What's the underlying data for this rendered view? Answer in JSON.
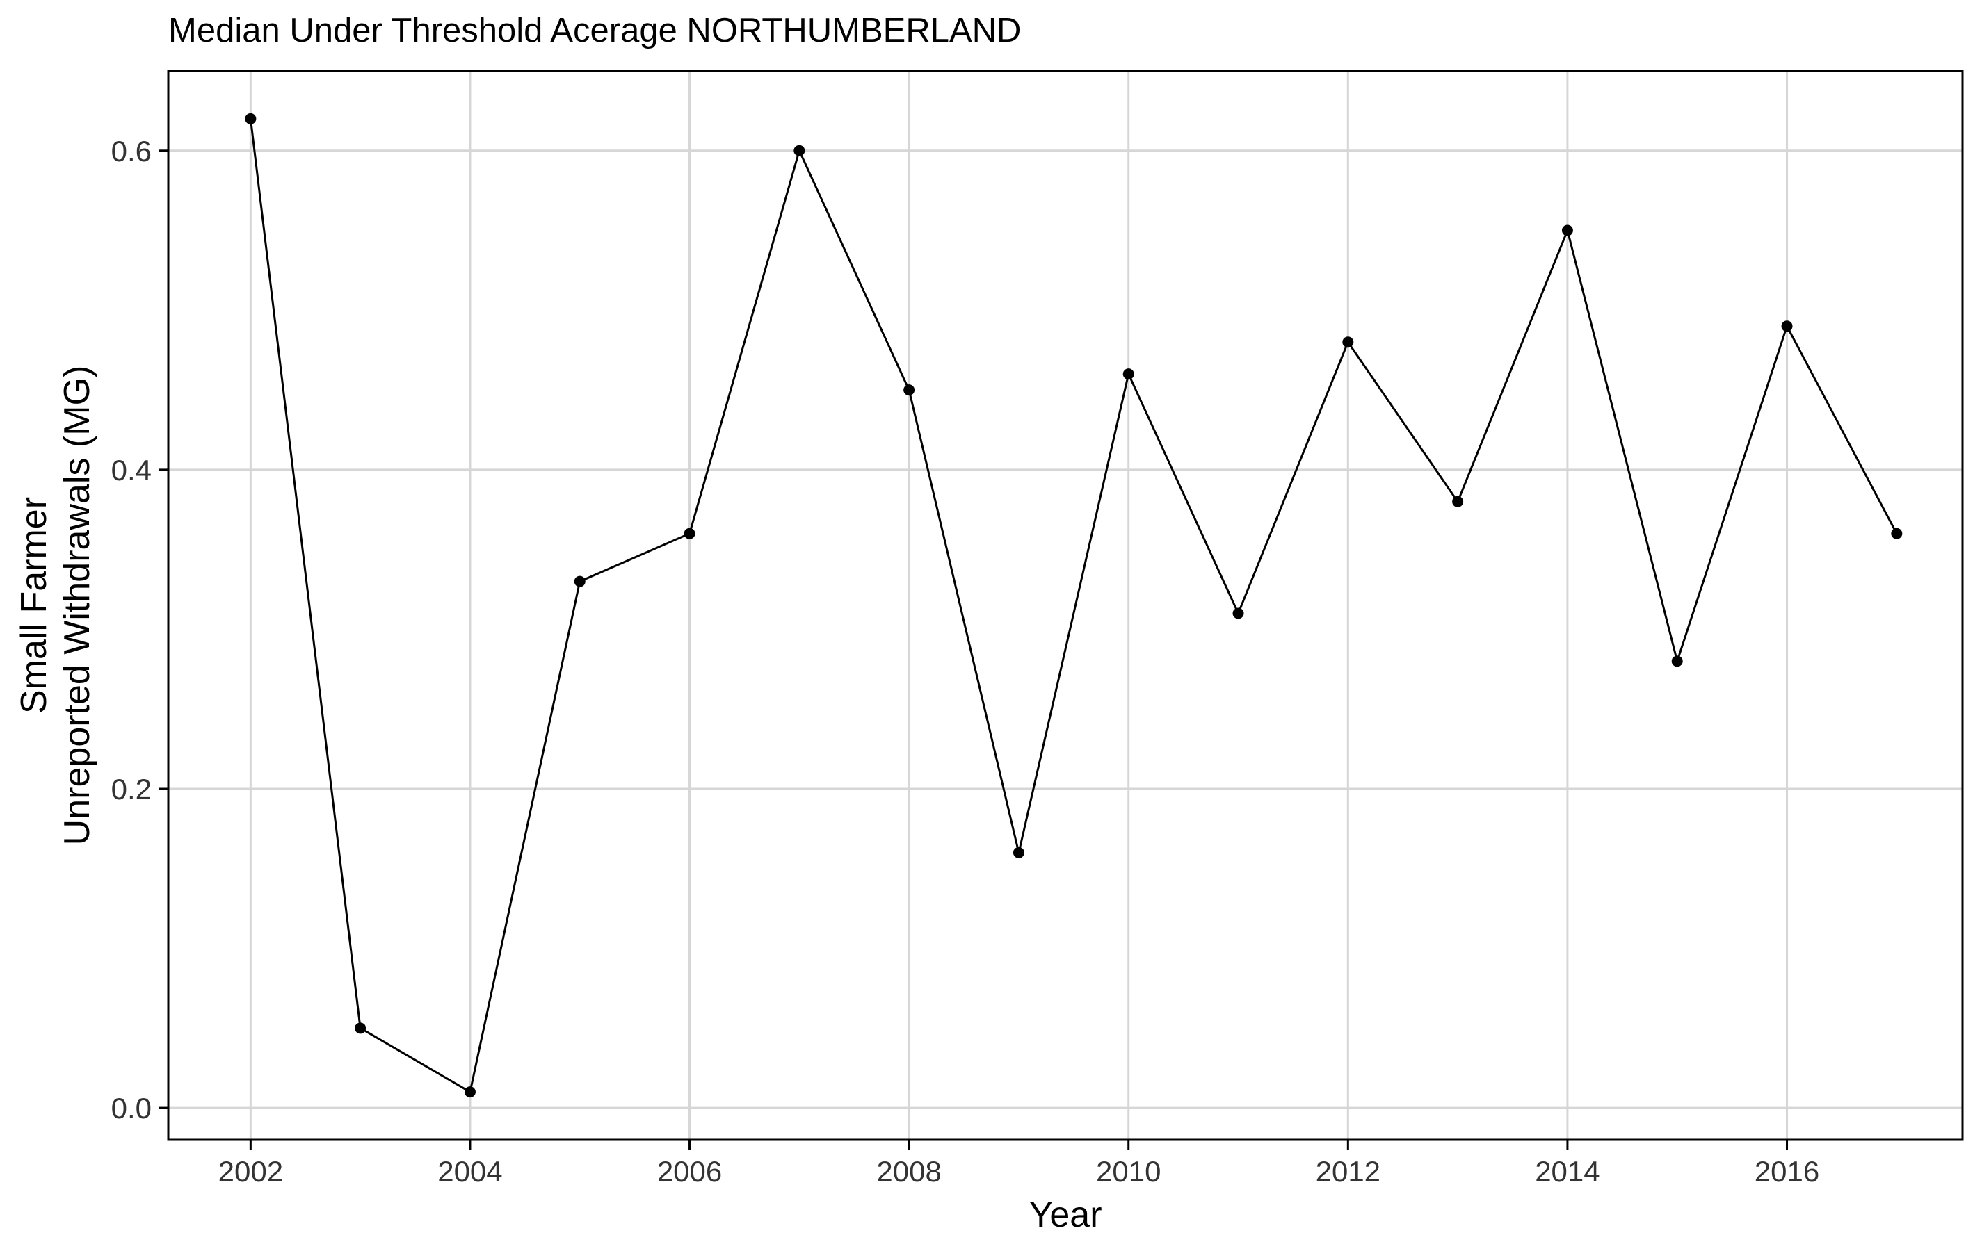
{
  "chart_data": {
    "type": "line",
    "title": "Median Under Threshold Acerage NORTHUMBERLAND",
    "xlabel": "Year",
    "ylabel_lines": [
      "Small Farmer",
      "Unreported Withdrawals (MG)"
    ],
    "x_ticks": [
      2002,
      2004,
      2006,
      2008,
      2010,
      2012,
      2014,
      2016
    ],
    "x_tick_labels": [
      "2002",
      "2004",
      "2006",
      "2008",
      "2010",
      "2012",
      "2014",
      "2016"
    ],
    "y_ticks": [
      0.0,
      0.2,
      0.4,
      0.6
    ],
    "y_tick_labels": [
      "0.0",
      "0.2",
      "0.4",
      "0.6"
    ],
    "xlim": [
      2001.25,
      2017.6
    ],
    "ylim": [
      -0.02,
      0.65
    ],
    "grid": true,
    "series": [
      {
        "color": "#000000",
        "x": [
          2002,
          2003,
          2004,
          2005,
          2006,
          2007,
          2008,
          2009,
          2010,
          2011,
          2012,
          2013,
          2014,
          2015,
          2016,
          2017
        ],
        "y": [
          0.62,
          0.05,
          0.01,
          0.33,
          0.36,
          0.6,
          0.45,
          0.16,
          0.46,
          0.31,
          0.48,
          0.38,
          0.55,
          0.28,
          0.49,
          0.36
        ]
      }
    ]
  }
}
